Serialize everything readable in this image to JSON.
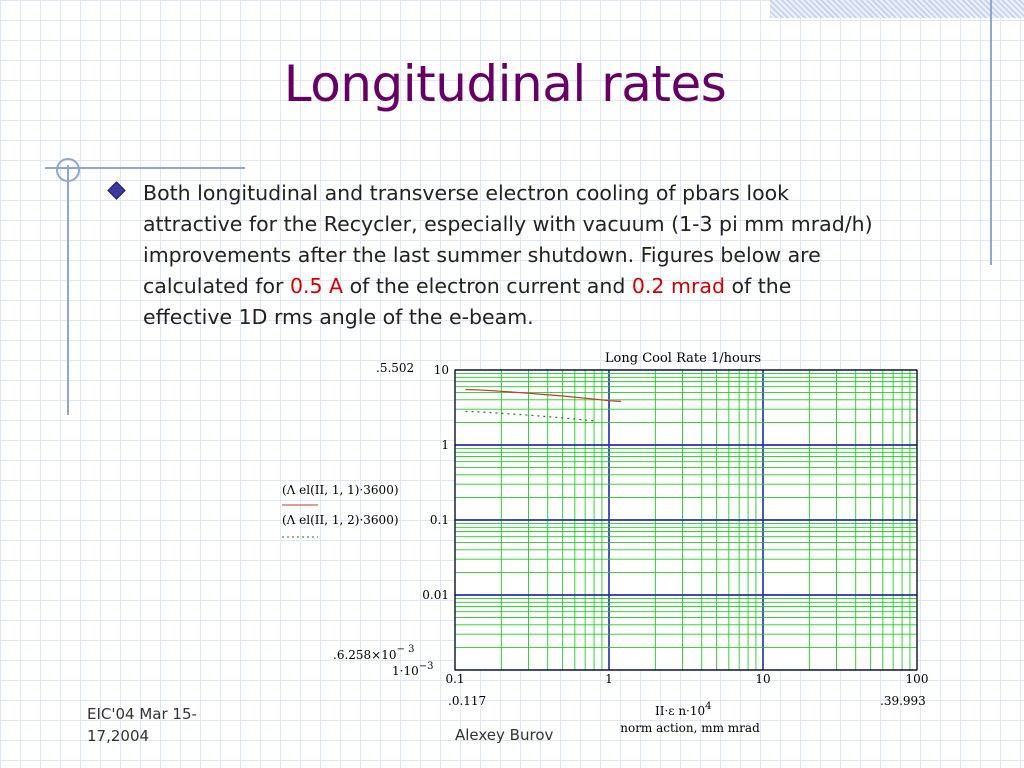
{
  "slide": {
    "title": "Longitudinal rates",
    "bullet": {
      "line1": "Both longitudinal and transverse electron cooling of pbars look",
      "line2": "attractive for the Recycler, especially with vacuum (1-3 pi mm mrad/h)",
      "line3": "improvements after the last summer shutdown.  Figures below are",
      "line4_pre": "calculated for ",
      "highlight1": "0.5 A",
      "line4_mid": " of the electron current and ",
      "highlight2": "0.2 mrad",
      "line4_post": " of the",
      "line5": "effective 1D rms angle of the e-beam."
    },
    "footer": {
      "date_line1": "EIC'04 Mar 15-",
      "date_line2": "17,2004",
      "author": "Alexey Burov"
    }
  },
  "chart_data": {
    "type": "line",
    "title": "Long Cool Rate 1/hours",
    "xlabel": "norm action, mm mrad",
    "x_variable": "II·ε n·10",
    "x_variable_exp": "4",
    "x_scale": "log",
    "y_scale": "log",
    "xlim": [
      0.1,
      100
    ],
    "ylim": [
      0.001,
      10
    ],
    "x_ticks": [
      "0.1",
      "1",
      "10",
      "100"
    ],
    "y_ticks": [
      "10",
      "1",
      "0.1",
      "0.01"
    ],
    "y_bottom_tick": "1·10",
    "y_bottom_tick_exp": "−3",
    "x_range_labels": {
      "min": "0.117",
      "max": "39.993"
    },
    "y_range_labels": {
      "max": "5.502",
      "min": "6.258×10",
      "min_exp": "− 3"
    },
    "grid": true,
    "legend": [
      {
        "label": "(Λ el(II, 1, 1)·3600)",
        "style": "solid",
        "color": "#c0392b"
      },
      {
        "label": "(Λ el(II, 1, 2)·3600)",
        "style": "dotted",
        "color": "#1a7a1a"
      }
    ],
    "series": [
      {
        "name": "(Λ el(II, 1, 1)·3600)",
        "color": "#c0392b",
        "style": "solid",
        "x": [
          0.117,
          0.15,
          0.2,
          0.3,
          0.5,
          0.8,
          1.0,
          1.2
        ],
        "y": [
          5.5,
          5.4,
          5.2,
          4.9,
          4.5,
          4.1,
          3.9,
          3.8
        ]
      },
      {
        "name": "(Λ el(II, 1, 2)·3600)",
        "color": "#1a7a1a",
        "style": "dotted",
        "x": [
          0.117,
          0.15,
          0.2,
          0.3,
          0.5,
          0.8
        ],
        "y": [
          2.8,
          2.75,
          2.65,
          2.5,
          2.3,
          2.1
        ]
      }
    ]
  }
}
